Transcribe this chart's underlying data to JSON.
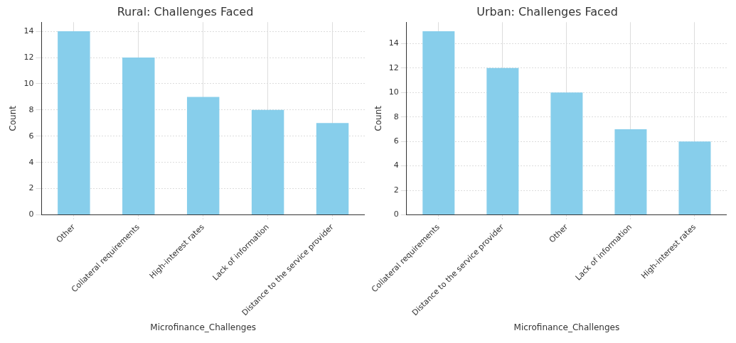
{
  "chart_data": [
    {
      "type": "bar",
      "title": "Rural: Challenges Faced",
      "xlabel": "Microfinance_Challenges",
      "ylabel": "Count",
      "categories": [
        "Other",
        "Collateral requirements",
        "High-interest rates",
        "Lack of information",
        "Distance to the service provider"
      ],
      "values": [
        14,
        12,
        9,
        8,
        7
      ],
      "color": "#87ceeb",
      "ylim": [
        0,
        14.7
      ],
      "yticks": [
        0,
        2,
        4,
        6,
        8,
        10,
        12,
        14
      ],
      "grid": true
    },
    {
      "type": "bar",
      "title": "Urban: Challenges Faced",
      "xlabel": "Microfinance_Challenges",
      "ylabel": "Count",
      "categories": [
        "Collateral requirements",
        "Distance to the service provider",
        "Other",
        "Lack of information",
        "High-interest rates"
      ],
      "values": [
        15,
        12,
        10,
        7,
        6
      ],
      "color": "#87ceeb",
      "ylim": [
        0,
        15.75
      ],
      "yticks": [
        0,
        2,
        4,
        6,
        8,
        10,
        12,
        14
      ],
      "grid": true
    }
  ]
}
